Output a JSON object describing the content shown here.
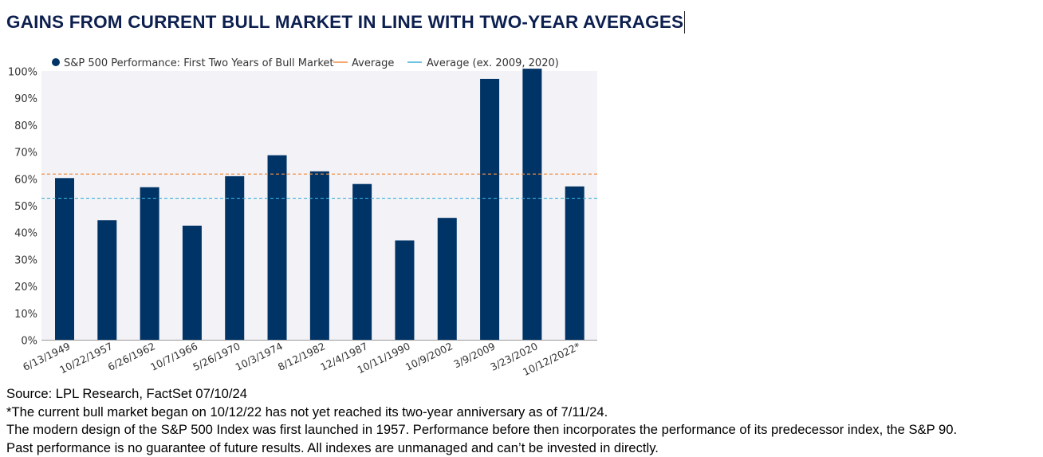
{
  "title": "GAINS FROM CURRENT BULL MARKET IN LINE WITH TWO-YEAR AVERAGES",
  "chart_data": {
    "type": "bar",
    "categories": [
      "6/13/1949",
      "10/22/1957",
      "6/26/1962",
      "10/7/1966",
      "5/26/1970",
      "10/3/1974",
      "8/12/1982",
      "12/4/1987",
      "10/11/1990",
      "10/9/2002",
      "3/9/2009",
      "3/23/2020",
      "10/12/2022*"
    ],
    "series": [
      {
        "name": "S&P 500 Performance: First Two Years of Bull Market",
        "values": [
          60.3,
          44.6,
          56.9,
          42.6,
          61.0,
          68.8,
          62.8,
          58.1,
          37.1,
          45.5,
          97.2,
          101.0,
          57.2
        ],
        "color": "#003366"
      }
    ],
    "reference_lines": [
      {
        "name": "Average",
        "value": 61.8,
        "color": "#f08a3e",
        "style": "dashed"
      },
      {
        "name": "Average (ex. 2009, 2020)",
        "value": 52.8,
        "color": "#3fb0d8",
        "style": "dashed"
      }
    ],
    "ylim": [
      0,
      100
    ],
    "yticks": [
      "0%",
      "10%",
      "20%",
      "30%",
      "40%",
      "50%",
      "60%",
      "70%",
      "80%",
      "90%",
      "100%"
    ],
    "legend_position": "top",
    "plot_background": "#f3f3f7"
  },
  "notes": [
    "Source: LPL Research, FactSet 07/10/24",
    "*The current bull market began on 10/12/22 has not yet reached its two-year anniversary as of 7/11/24.",
    "The modern design of the S&P 500 Index was first launched in 1957. Performance before then incorporates the performance of its predecessor index, the S&P 90.",
    "Past performance is no guarantee of future results. All indexes are unmanaged and can’t be invested in directly."
  ]
}
